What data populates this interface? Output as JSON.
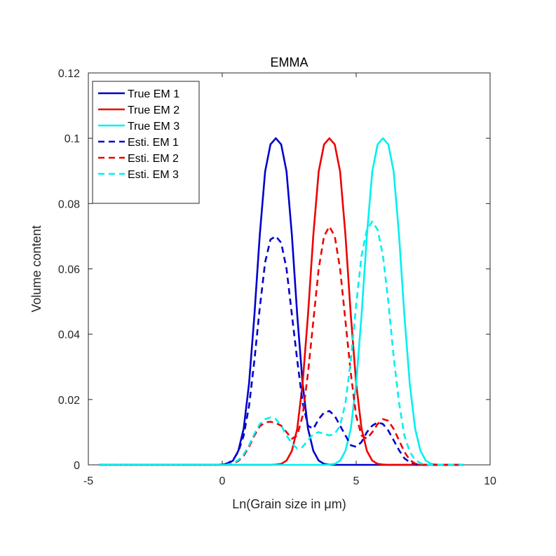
{
  "chart_data": {
    "type": "line",
    "title": "EMMA",
    "xlabel": "Ln(Grain size in μm)",
    "ylabel": "Volume content",
    "xlim": [
      -5,
      10
    ],
    "ylim": [
      0,
      0.12
    ],
    "xticks": [
      -5,
      0,
      5,
      10
    ],
    "yticks": [
      0,
      0.02,
      0.04,
      0.06,
      0.08,
      0.1,
      0.12
    ],
    "xtick_labels": [
      "-5",
      "0",
      "5",
      "10"
    ],
    "ytick_labels": [
      "0",
      "0.02",
      "0.04",
      "0.06",
      "0.08",
      "0.1",
      "0.12"
    ],
    "legend_position": "top-left",
    "grid": false,
    "x": [
      -4.6,
      -4.4,
      -4.2,
      -4.0,
      -3.8,
      -3.6,
      -3.4,
      -3.2,
      -3.0,
      -2.8,
      -2.6,
      -2.4,
      -2.2,
      -2.0,
      -1.8,
      -1.6,
      -1.4,
      -1.2,
      -1.0,
      -0.8,
      -0.6,
      -0.4,
      -0.2,
      0.0,
      0.2,
      0.4,
      0.6,
      0.8,
      1.0,
      1.2,
      1.4,
      1.6,
      1.8,
      2.0,
      2.2,
      2.4,
      2.6,
      2.8,
      3.0,
      3.2,
      3.4,
      3.6,
      3.8,
      4.0,
      4.2,
      4.4,
      4.6,
      4.8,
      5.0,
      5.2,
      5.4,
      5.6,
      5.8,
      6.0,
      6.2,
      6.4,
      6.6,
      6.8,
      7.0,
      7.2,
      7.4,
      7.6,
      7.8,
      8.0,
      8.2,
      8.4,
      8.6,
      8.8,
      9.0
    ],
    "series": [
      {
        "name": "True EM 1",
        "color": "#0000cd",
        "dash": "solid",
        "values": [
          0,
          0,
          0,
          0,
          0,
          0,
          0,
          0,
          0,
          0,
          0,
          0,
          0,
          0,
          0,
          0,
          0,
          0,
          0,
          0,
          0,
          0,
          0,
          0.0001,
          0.0003,
          0.0013,
          0.0043,
          0.0111,
          0.0249,
          0.0458,
          0.0703,
          0.0898,
          0.0981,
          0.1,
          0.0981,
          0.0898,
          0.0703,
          0.0458,
          0.0249,
          0.0111,
          0.0043,
          0.0013,
          0.0003,
          0.0001,
          0,
          0,
          0,
          0,
          0,
          0,
          0,
          0,
          0,
          0,
          0,
          0,
          0,
          0,
          0,
          0,
          0,
          0,
          0,
          0,
          0,
          0,
          0,
          0,
          0
        ]
      },
      {
        "name": "True EM 2",
        "color": "#ee0000",
        "dash": "solid",
        "values": [
          0,
          0,
          0,
          0,
          0,
          0,
          0,
          0,
          0,
          0,
          0,
          0,
          0,
          0,
          0,
          0,
          0,
          0,
          0,
          0,
          0,
          0,
          0,
          0,
          0,
          0,
          0,
          0,
          0,
          0,
          0,
          0,
          0,
          0.0001,
          0.0003,
          0.0013,
          0.0043,
          0.0111,
          0.0249,
          0.0458,
          0.0703,
          0.0898,
          0.0981,
          0.1,
          0.0981,
          0.0898,
          0.0703,
          0.0458,
          0.0249,
          0.0111,
          0.0043,
          0.0013,
          0.0003,
          0.0001,
          0,
          0,
          0,
          0,
          0,
          0,
          0,
          0,
          0,
          0,
          0,
          0,
          0,
          0,
          0
        ]
      },
      {
        "name": "True EM 3",
        "color": "#00f0f0",
        "dash": "solid",
        "values": [
          0,
          0,
          0,
          0,
          0,
          0,
          0,
          0,
          0,
          0,
          0,
          0,
          0,
          0,
          0,
          0,
          0,
          0,
          0,
          0,
          0,
          0,
          0,
          0,
          0,
          0,
          0,
          0,
          0,
          0,
          0,
          0,
          0,
          0,
          0,
          0,
          0,
          0,
          0,
          0,
          0,
          0,
          0,
          0.0001,
          0.0003,
          0.0013,
          0.0043,
          0.0111,
          0.0249,
          0.0458,
          0.0703,
          0.0898,
          0.0981,
          0.1,
          0.0981,
          0.0898,
          0.0703,
          0.0458,
          0.0249,
          0.0111,
          0.0043,
          0.0013,
          0.0003,
          0.0001,
          0,
          0,
          0,
          0,
          0
        ]
      },
      {
        "name": "Esti. EM 1",
        "color": "#0000cd",
        "dash": "dashed",
        "values": [
          0,
          0,
          0,
          0,
          0,
          0,
          0,
          0,
          0,
          0,
          0,
          0,
          0,
          0,
          0,
          0,
          0,
          0,
          0,
          0,
          0,
          0,
          0,
          0.0001,
          0.0005,
          0.0015,
          0.004,
          0.009,
          0.018,
          0.032,
          0.048,
          0.062,
          0.069,
          0.07,
          0.068,
          0.06,
          0.046,
          0.032,
          0.019,
          0.012,
          0.011,
          0.014,
          0.016,
          0.0165,
          0.015,
          0.012,
          0.009,
          0.006,
          0.0055,
          0.007,
          0.01,
          0.012,
          0.013,
          0.0125,
          0.0105,
          0.0075,
          0.0045,
          0.002,
          0.0008,
          0.0002,
          0,
          0,
          0,
          0,
          0,
          0,
          0,
          0,
          0
        ]
      },
      {
        "name": "Esti. EM 2",
        "color": "#ee0000",
        "dash": "dashed",
        "values": [
          0,
          0,
          0,
          0,
          0,
          0,
          0,
          0,
          0,
          0,
          0,
          0,
          0,
          0,
          0,
          0,
          0,
          0,
          0,
          0,
          0,
          0,
          0,
          0,
          0.0001,
          0.0004,
          0.0012,
          0.0028,
          0.0055,
          0.009,
          0.0118,
          0.013,
          0.0132,
          0.0128,
          0.012,
          0.01,
          0.008,
          0.009,
          0.015,
          0.028,
          0.044,
          0.06,
          0.07,
          0.073,
          0.07,
          0.06,
          0.044,
          0.028,
          0.015,
          0.009,
          0.008,
          0.01,
          0.0125,
          0.014,
          0.0135,
          0.011,
          0.0075,
          0.004,
          0.0015,
          0.0004,
          0.0001,
          0,
          0,
          0,
          0,
          0,
          0,
          0,
          0
        ]
      },
      {
        "name": "Esti. EM 3",
        "color": "#00f0f0",
        "dash": "dashed",
        "values": [
          0,
          0,
          0,
          0,
          0,
          0,
          0,
          0,
          0,
          0,
          0,
          0,
          0,
          0,
          0,
          0,
          0,
          0,
          0,
          0,
          0,
          0,
          0,
          0,
          0.0001,
          0.0005,
          0.0015,
          0.0032,
          0.006,
          0.0095,
          0.0125,
          0.014,
          0.0145,
          0.014,
          0.012,
          0.009,
          0.0065,
          0.005,
          0.0055,
          0.0075,
          0.0095,
          0.01,
          0.0095,
          0.009,
          0.0095,
          0.012,
          0.019,
          0.032,
          0.049,
          0.064,
          0.072,
          0.0745,
          0.072,
          0.064,
          0.05,
          0.033,
          0.019,
          0.009,
          0.004,
          0.0015,
          0.0005,
          0.0001,
          0,
          0,
          0,
          0,
          0,
          0,
          0
        ]
      }
    ]
  }
}
